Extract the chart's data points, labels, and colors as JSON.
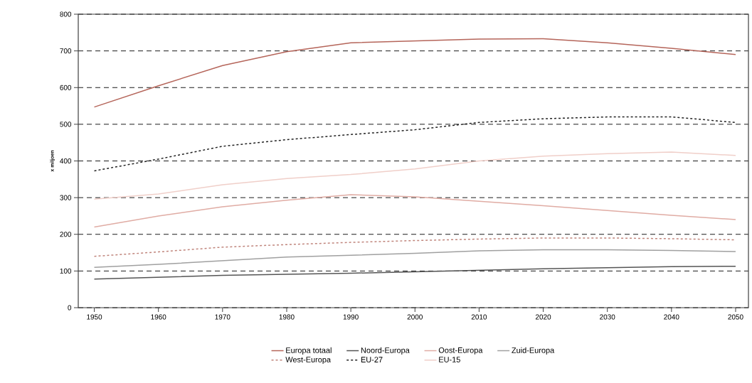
{
  "chart_data": {
    "type": "line",
    "ylabel": "x miljoen",
    "x": [
      1950,
      1960,
      1970,
      1980,
      1990,
      2000,
      2010,
      2020,
      2030,
      2040,
      2050
    ],
    "series": [
      {
        "name": "Europa totaal",
        "color": "#b5655a",
        "values": [
          547,
          605,
          660,
          698,
          722,
          727,
          732,
          733,
          722,
          707,
          690
        ]
      },
      {
        "name": "Noord-Europa",
        "color": "#555555",
        "values": [
          78,
          83,
          88,
          91,
          94,
          98,
          102,
          106,
          109,
          112,
          113
        ]
      },
      {
        "name": "Oost-Europa",
        "color": "#e0aca4",
        "values": [
          220,
          250,
          275,
          293,
          308,
          302,
          290,
          278,
          265,
          252,
          240
        ]
      },
      {
        "name": "Zuid-Europa",
        "color": "#a0a0a0",
        "values": [
          110,
          118,
          128,
          138,
          143,
          148,
          155,
          158,
          158,
          156,
          153
        ]
      },
      {
        "name": "West-Europa",
        "color": "#c0857c",
        "line_style": "dashed",
        "values": [
          140,
          152,
          165,
          172,
          178,
          183,
          187,
          190,
          190,
          188,
          185
        ]
      },
      {
        "name": "EU-27",
        "color": "#222222",
        "line_style": "dashed",
        "values": [
          373,
          405,
          440,
          458,
          472,
          485,
          505,
          515,
          520,
          520,
          505
        ]
      },
      {
        "name": "EU-15",
        "color": "#f0cfc9",
        "values": [
          296,
          310,
          335,
          352,
          363,
          378,
          400,
          413,
          420,
          424,
          415
        ]
      }
    ],
    "xlim": [
      1947.5,
      2052
    ],
    "ylim": [
      0,
      800
    ],
    "xticks": [
      1950,
      1960,
      1970,
      1980,
      1990,
      2000,
      2010,
      2020,
      2030,
      2040,
      2050
    ],
    "yticks": [
      0,
      100,
      200,
      300,
      400,
      500,
      600,
      700,
      800
    ],
    "grid": "y",
    "legend": "bottom",
    "marker": "none",
    "line_style": "solid"
  }
}
